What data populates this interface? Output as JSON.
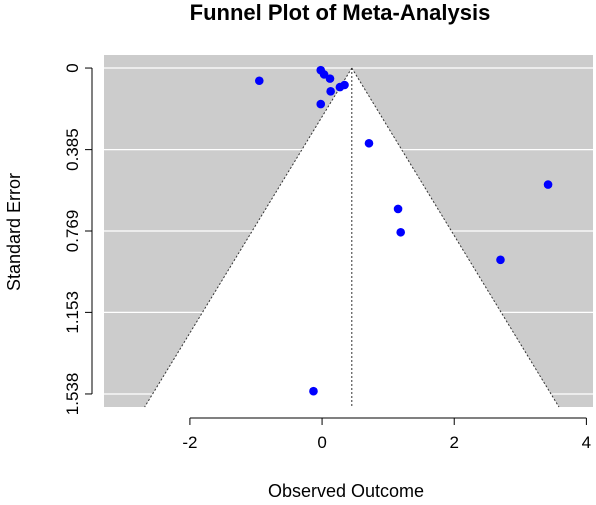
{
  "chart_data": {
    "type": "scatter",
    "title": "Funnel Plot of Meta-Analysis",
    "xlabel": "Observed Outcome",
    "ylabel": "Standard Error",
    "xlim": [
      -3.3,
      4.1
    ],
    "ylim": [
      1.538,
      0.0
    ],
    "reversed_y": true,
    "x_ticks": [
      -2,
      0,
      2,
      4
    ],
    "x_tick_labels": [
      "-2",
      "0",
      "2",
      "4"
    ],
    "y_ticks": [
      0,
      0.385,
      0.769,
      1.153,
      1.538
    ],
    "y_tick_labels": [
      "0",
      "0.385",
      "0.769",
      "1.153",
      "1.538"
    ],
    "pooled_estimate": 0.45,
    "funnel_multiplier": 1.96,
    "grid": true,
    "background_color": "#cccccc",
    "funnel_fill": "#ffffff",
    "point_color": "#0000ff",
    "points": [
      {
        "x": -0.95,
        "y": 0.06
      },
      {
        "x": -0.02,
        "y": 0.01
      },
      {
        "x": 0.03,
        "y": 0.03
      },
      {
        "x": 0.12,
        "y": 0.05
      },
      {
        "x": 0.27,
        "y": 0.09
      },
      {
        "x": 0.34,
        "y": 0.08
      },
      {
        "x": 0.13,
        "y": 0.11
      },
      {
        "x": -0.02,
        "y": 0.17
      },
      {
        "x": 0.71,
        "y": 0.355
      },
      {
        "x": 3.42,
        "y": 0.55
      },
      {
        "x": 1.15,
        "y": 0.665
      },
      {
        "x": 1.19,
        "y": 0.775
      },
      {
        "x": 2.7,
        "y": 0.905
      },
      {
        "x": -0.13,
        "y": 1.525
      }
    ]
  }
}
